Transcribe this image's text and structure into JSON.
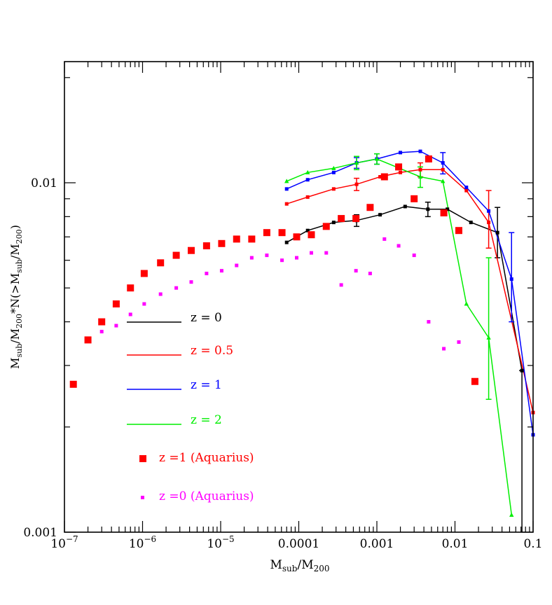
{
  "chart_data": {
    "type": "scatter",
    "title": "",
    "xlabel": "M_sub/M_200",
    "ylabel": "M_sub/M_200*N(>M_sub/M_200)",
    "xscale": "log",
    "yscale": "log",
    "xlim": [
      1e-07,
      0.1
    ],
    "ylim": [
      0.001,
      0.03
    ],
    "x_tick_labels": [
      {
        "value": 1e-07,
        "base": "10",
        "exp": "−7"
      },
      {
        "value": 1e-06,
        "base": "10",
        "exp": "−6"
      },
      {
        "value": 1e-05,
        "base": "10",
        "exp": "−5"
      },
      {
        "value": 0.0001,
        "base": "0.0001",
        "exp": ""
      },
      {
        "value": 0.001,
        "base": "0.001",
        "exp": ""
      },
      {
        "value": 0.01,
        "base": "0.01",
        "exp": ""
      },
      {
        "value": 0.1,
        "base": "0.1",
        "exp": ""
      }
    ],
    "y_tick_labels": [
      {
        "value": 0.001,
        "label": "0.001"
      },
      {
        "value": 0.01,
        "label": "0.01"
      }
    ],
    "legend_position": "lower-left",
    "series": [
      {
        "name": "z = 0",
        "color": "#000000",
        "style": "line-square",
        "x": [
          7e-05,
          0.00013,
          0.00028,
          0.00055,
          0.0011,
          0.0023,
          0.0045,
          0.008,
          0.016,
          0.035,
          0.072
        ],
        "y": [
          0.00675,
          0.0073,
          0.0077,
          0.0078,
          0.0081,
          0.00855,
          0.0084,
          0.0084,
          0.0077,
          0.0072,
          0.0029
        ],
        "err_low": [
          0,
          0,
          0,
          0.0003,
          0,
          0,
          0.0004,
          0,
          0,
          0.0011,
          0.0019
        ],
        "err_high": [
          0,
          0,
          0,
          0.0003,
          0,
          0,
          0.0004,
          0,
          0,
          0.0013,
          0
        ]
      },
      {
        "name": "z = 0.5",
        "color": "#ff0000",
        "style": "line-square",
        "x": [
          7e-05,
          0.00013,
          0.00028,
          0.00055,
          0.0011,
          0.002,
          0.0036,
          0.007,
          0.014,
          0.027,
          0.1
        ],
        "y": [
          0.0087,
          0.0091,
          0.0096,
          0.0099,
          0.0104,
          0.0107,
          0.0109,
          0.0109,
          0.0095,
          0.0077,
          0.0022
        ],
        "err_low": [
          0,
          0,
          0,
          0.0004,
          0,
          0,
          0.0005,
          0,
          0,
          0.0012,
          0
        ],
        "err_high": [
          0,
          0,
          0,
          0.0004,
          0,
          0,
          0.0005,
          0,
          0,
          0.0018,
          0
        ]
      },
      {
        "name": "z = 1",
        "color": "#0000ff",
        "style": "line-square",
        "x": [
          7e-05,
          0.00013,
          0.00028,
          0.00055,
          0.001,
          0.002,
          0.0036,
          0.007,
          0.014,
          0.027,
          0.053,
          0.1
        ],
        "y": [
          0.0096,
          0.0102,
          0.0107,
          0.0114,
          0.0117,
          0.0122,
          0.0123,
          0.0114,
          0.0097,
          0.0083,
          0.0053,
          0.0019
        ],
        "err_low": [
          0,
          0,
          0,
          0.0004,
          0.0004,
          0,
          0,
          0.0008,
          0,
          0,
          0.0013,
          0
        ],
        "err_high": [
          0,
          0,
          0,
          0.0004,
          0.0004,
          0,
          0,
          0.0008,
          0,
          0,
          0.0019,
          0
        ]
      },
      {
        "name": "z = 2",
        "color": "#00ee00",
        "style": "line-triangle",
        "x": [
          7e-05,
          0.00013,
          0.00028,
          0.00055,
          0.001,
          0.0036,
          0.007,
          0.014,
          0.027,
          0.053
        ],
        "y": [
          0.0101,
          0.0107,
          0.011,
          0.0114,
          0.0117,
          0.0104,
          0.0101,
          0.0045,
          0.0036,
          0.00112
        ],
        "err_low": [
          0,
          0,
          0,
          0.0005,
          0.0004,
          0.0007,
          0,
          0,
          0.0012,
          0
        ],
        "err_high": [
          0,
          0,
          0,
          0.0005,
          0.0004,
          0.0007,
          0,
          0,
          0.0025,
          0
        ]
      },
      {
        "name": "z =1 (Aquarius)",
        "color": "#ff0000",
        "style": "big-square",
        "x": [
          1.3e-07,
          2e-07,
          3e-07,
          4.6e-07,
          7e-07,
          1.05e-06,
          1.7e-06,
          2.7e-06,
          4.2e-06,
          6.6e-06,
          1.03e-05,
          1.6e-05,
          2.5e-05,
          3.9e-05,
          6.1e-05,
          9.4e-05,
          0.000145,
          0.000225,
          0.00035,
          0.00054,
          0.00082,
          0.00125,
          0.0019,
          0.003,
          0.0046,
          0.0072,
          0.0112,
          0.018
        ],
        "y": [
          0.00265,
          0.00355,
          0.004,
          0.0045,
          0.005,
          0.0055,
          0.0059,
          0.0062,
          0.0064,
          0.0066,
          0.0067,
          0.0069,
          0.0069,
          0.0072,
          0.0072,
          0.007,
          0.0071,
          0.0075,
          0.0079,
          0.0079,
          0.0085,
          0.0104,
          0.0111,
          0.009,
          0.0117,
          0.0082,
          0.0073,
          0.0027
        ]
      },
      {
        "name": "z =0 (Aquarius)",
        "color": "#ff00ff",
        "style": "small-square",
        "x": [
          3e-07,
          4.6e-07,
          7e-07,
          1.05e-06,
          1.7e-06,
          2.7e-06,
          4.2e-06,
          6.6e-06,
          1.03e-05,
          1.6e-05,
          2.5e-05,
          3.9e-05,
          6.1e-05,
          9.4e-05,
          0.000145,
          0.000225,
          0.00035,
          0.00054,
          0.00082,
          0.00125,
          0.0019,
          0.003,
          0.0046,
          0.0072,
          0.0112
        ],
        "y": [
          0.00375,
          0.0039,
          0.0042,
          0.0045,
          0.0048,
          0.005,
          0.0052,
          0.0055,
          0.0056,
          0.0058,
          0.0061,
          0.0062,
          0.006,
          0.0061,
          0.0063,
          0.0063,
          0.0051,
          0.0056,
          0.0055,
          0.0069,
          0.0066,
          0.0062,
          0.004,
          0.00335,
          0.0035
        ]
      }
    ]
  }
}
